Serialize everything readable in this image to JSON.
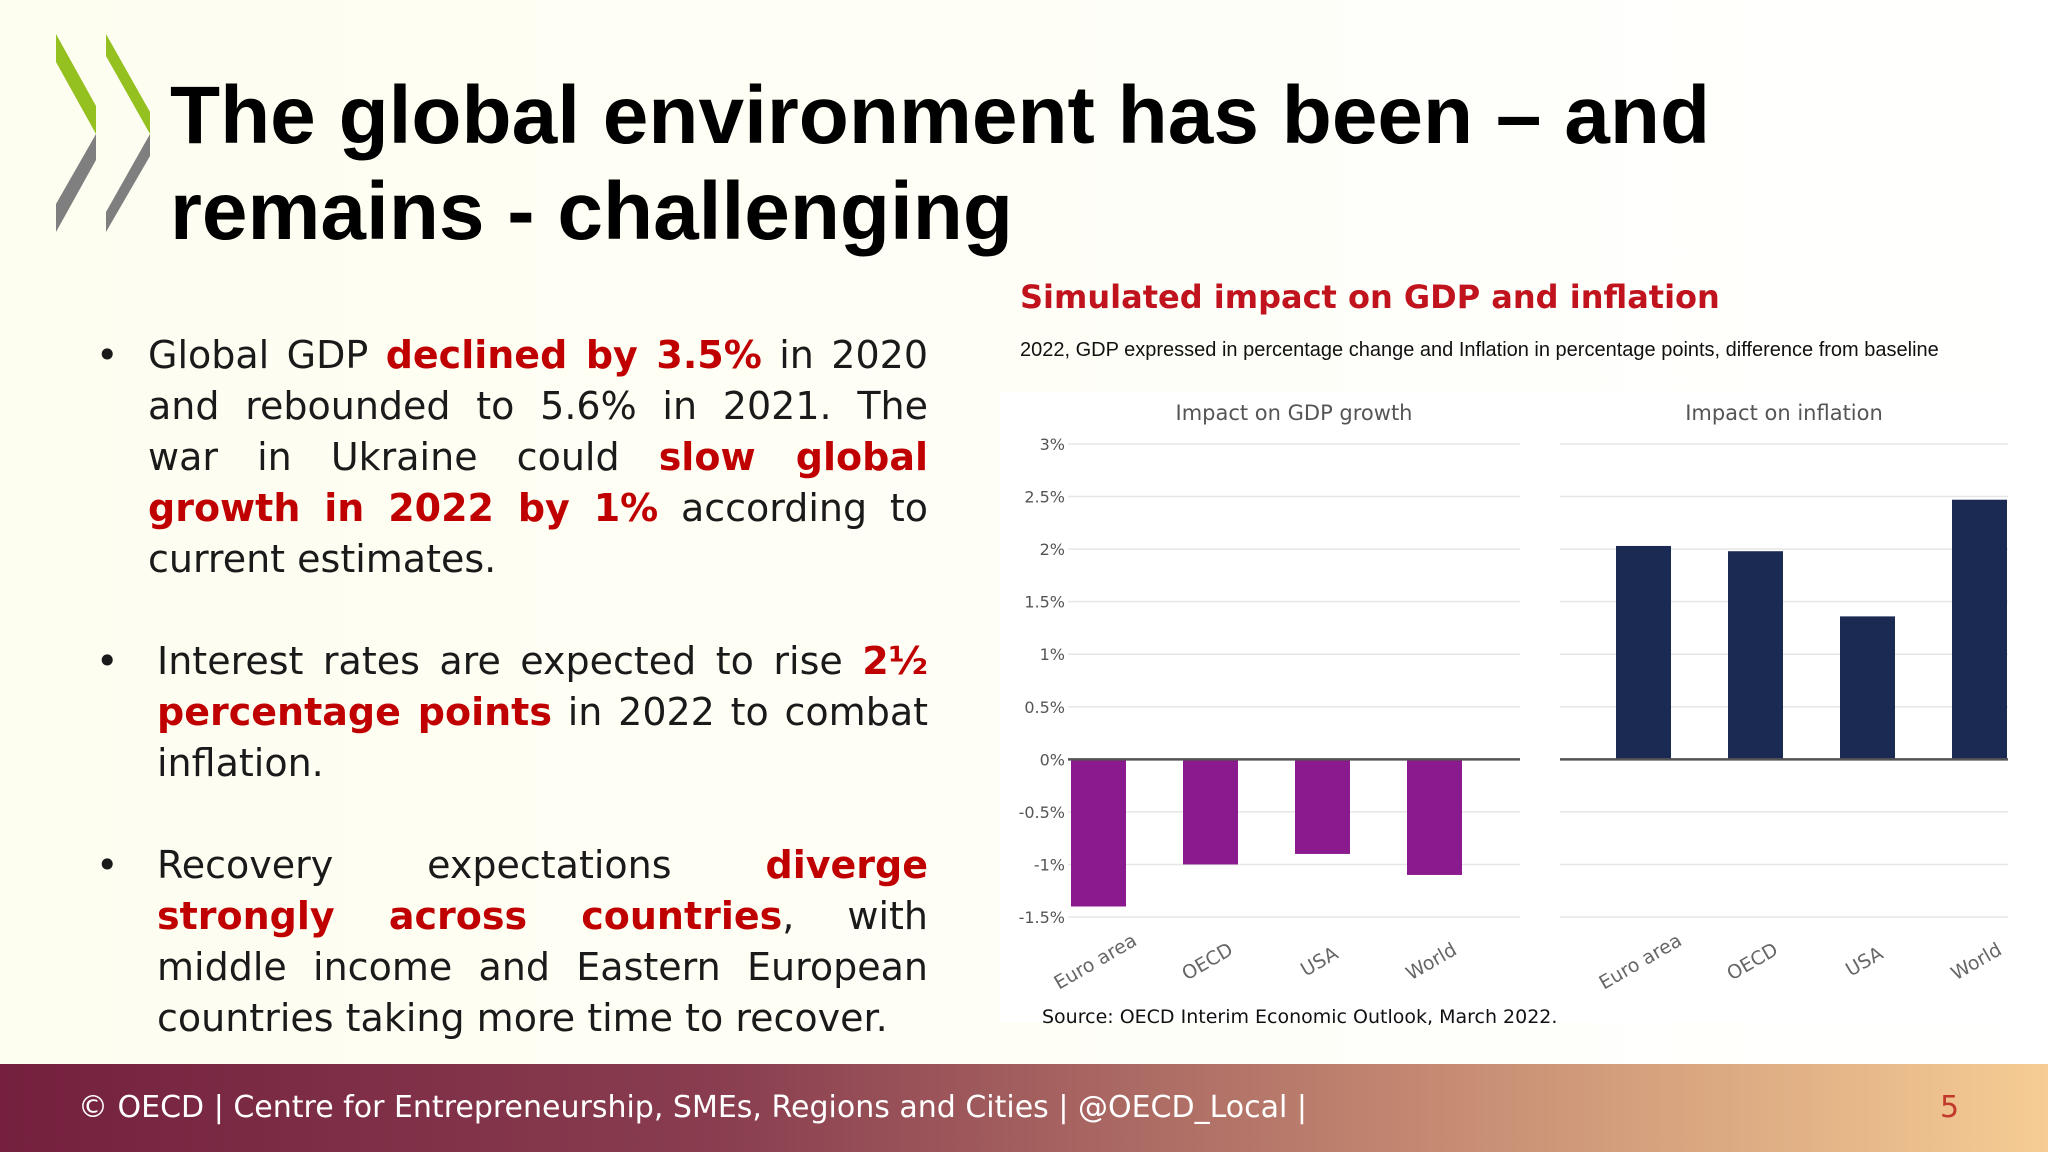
{
  "slide": {
    "title": "The global environment has been – and remains - challenging",
    "bullets": [
      {
        "segments": [
          {
            "t": "Global GDP ",
            "hl": false
          },
          {
            "t": "declined by 3.5%",
            "hl": true
          },
          {
            "t": " in 2020 and rebounded to 5.6% in 2021. The war in Ukraine could ",
            "hl": false
          },
          {
            "t": "slow global growth in 2022 by 1%",
            "hl": true
          },
          {
            "t": " according to current estimates.",
            "hl": false
          }
        ]
      },
      {
        "segments": [
          {
            "t": "Interest rates are expected to rise ",
            "hl": false
          },
          {
            "t": "2½ percentage points",
            "hl": true
          },
          {
            "t": "  in 2022 to combat inflation.",
            "hl": false
          }
        ]
      },
      {
        "segments": [
          {
            "t": "Recovery expectations ",
            "hl": false
          },
          {
            "t": "diverge strongly across countries",
            "hl": true
          },
          {
            "t": ", with middle income and Eastern European countries taking more time to recover.",
            "hl": false
          }
        ]
      }
    ],
    "bullet_symbol": "•",
    "footer": "© OECD | Centre for Entrepreneurship, SMEs, Regions and Cities | @OECD_Local |",
    "page_number": "5",
    "colors": {
      "highlight": "#c00000",
      "chart_title": "#c0131d",
      "gdp_bar": "#8b1a8f",
      "inflation_bar": "#1b2a52",
      "logo_green": "#94c11f",
      "logo_gray": "#7f7f7f"
    },
    "logo_icon": "oecd-chevrons-logo"
  },
  "chart": {
    "title": "Simulated impact on GDP and inflation",
    "subtitle": "2022, GDP expressed in percentage change and Inflation in percentage points, difference from baseline",
    "source": "Source: OECD Interim Economic Outlook, March 2022."
  },
  "chart_data": [
    {
      "type": "bar",
      "title": "Impact on GDP growth",
      "categories": [
        "Euro area",
        "OECD",
        "USA",
        "World"
      ],
      "values": [
        -1.4,
        -1.0,
        -0.9,
        -1.1
      ],
      "ylim": [
        -1.5,
        3
      ],
      "yticks": [
        "3%",
        "2.5%",
        "2%",
        "1.5%",
        "1%",
        "0.5%",
        "0%",
        "-0.5%",
        "-1%",
        "-1.5%"
      ],
      "grid": true
    },
    {
      "type": "bar",
      "title": "Impact on inflation",
      "categories": [
        "Euro area",
        "OECD",
        "USA",
        "World"
      ],
      "values": [
        2.03,
        1.98,
        1.36,
        2.47
      ],
      "ylim": [
        -1.5,
        3
      ],
      "grid": true
    }
  ]
}
